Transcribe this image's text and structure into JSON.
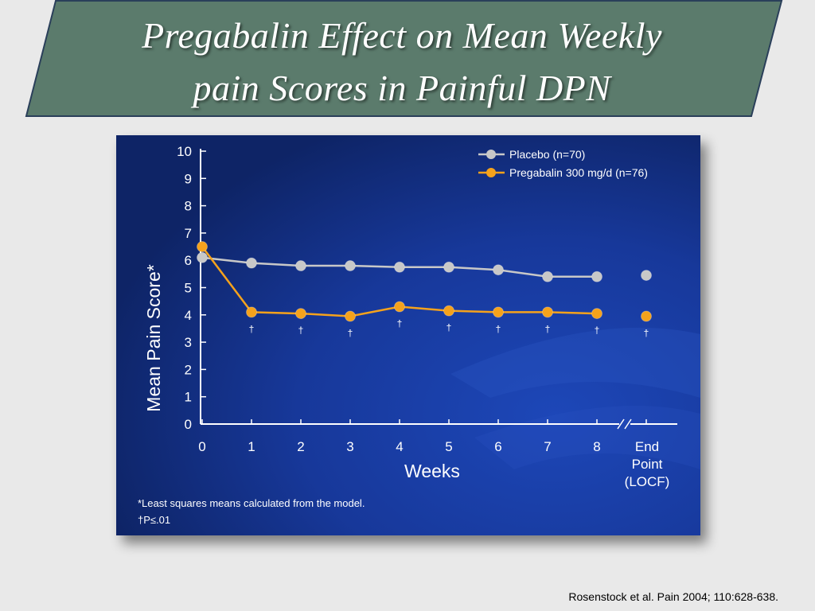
{
  "slide": {
    "title_line_1": "Pregabalin Effect on Mean Weekly",
    "title_line_2": "pain Scores in Painful DPN",
    "citation": "Rosenstock et al. Pain 2004; 110:628-638.",
    "banner_color": "#5b7b6c"
  },
  "chart_data": {
    "type": "line",
    "xlabel": "Weeks",
    "ylabel": "Mean Pain Score*",
    "ylim": [
      0,
      10
    ],
    "yticks": [
      "0",
      "1",
      "2",
      "3",
      "4",
      "5",
      "6",
      "7",
      "8",
      "9",
      "10"
    ],
    "categories": [
      "0",
      "1",
      "2",
      "3",
      "4",
      "5",
      "6",
      "7",
      "8"
    ],
    "endpoint_label": [
      "End",
      "Point",
      "(LOCF)"
    ],
    "legend_position": "top-right",
    "series": [
      {
        "name": "Placebo (n=70)",
        "color": "#c8c8c8",
        "values": [
          6.1,
          5.9,
          5.8,
          5.8,
          5.75,
          5.75,
          5.65,
          5.4,
          5.4
        ],
        "endpoint": 5.45
      },
      {
        "name": "Pregabalin 300 mg/d (n=76)",
        "color": "#f5a21c",
        "values": [
          6.5,
          4.1,
          4.05,
          3.95,
          4.3,
          4.15,
          4.1,
          4.1,
          4.05
        ],
        "endpoint": 3.95
      }
    ],
    "significance_marker": "†",
    "significant_weeks": [
      1,
      2,
      3,
      4,
      5,
      6,
      7,
      8
    ],
    "endpoint_significant": true,
    "footnote_1": "*Least squares means calculated from the model.",
    "footnote_2": "†P≤.01"
  }
}
